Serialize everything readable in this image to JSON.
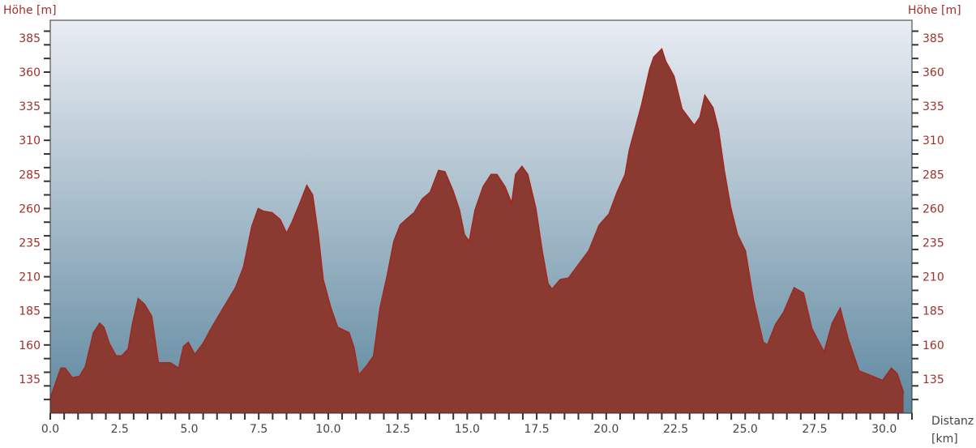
{
  "chart_data": {
    "type": "area",
    "ylabel_left": "Höhe  [m]",
    "ylabel_right": "Höhe  [m]",
    "xlabel": "Distanz",
    "xunit": "[km]",
    "xlim": [
      0,
      31
    ],
    "ylim": [
      110,
      398
    ],
    "xticks": [
      "0.0",
      "2.5",
      "5.0",
      "7.5",
      "10.0",
      "12.5",
      "15.0",
      "17.5",
      "20.0",
      "22.5",
      "25.0",
      "27.5",
      "30.0"
    ],
    "yticks": [
      "135",
      "160",
      "185",
      "210",
      "235",
      "260",
      "285",
      "310",
      "335",
      "360",
      "385"
    ],
    "colors": {
      "fill": "#8b3a32",
      "line": "#a3271c",
      "label": "#a0302a",
      "bg_top": "#e9edf3",
      "bg_bottom": "#5f889f"
    },
    "x": [
      0,
      0.38,
      0.53,
      0.8,
      1.05,
      1.26,
      1.55,
      1.78,
      1.93,
      2.13,
      2.37,
      2.57,
      2.8,
      2.95,
      3.16,
      3.39,
      3.65,
      3.89,
      4.32,
      4.62,
      4.79,
      4.97,
      5.2,
      5.49,
      5.84,
      6.22,
      6.66,
      6.95,
      7.25,
      7.48,
      7.68,
      7.98,
      8.27,
      8.5,
      8.7,
      8.94,
      9.23,
      9.44,
      9.64,
      9.82,
      10.1,
      10.34,
      10.75,
      10.93,
      11.1,
      11.39,
      11.63,
      11.86,
      12.12,
      12.36,
      12.59,
      12.8,
      13.09,
      13.38,
      13.67,
      13.97,
      14.2,
      14.49,
      14.72,
      14.9,
      15.07,
      15.28,
      15.57,
      15.86,
      16.07,
      16.36,
      16.6,
      16.74,
      16.97,
      17.18,
      17.47,
      17.7,
      17.91,
      18.05,
      18.35,
      18.64,
      18.93,
      19.37,
      19.75,
      20.1,
      20.39,
      20.68,
      20.83,
      21.27,
      21.56,
      21.71,
      22.0,
      22.14,
      22.44,
      22.73,
      23.17,
      23.37,
      23.55,
      23.84,
      24.04,
      24.25,
      24.48,
      24.72,
      25.01,
      25.3,
      25.65,
      25.8,
      26.09,
      26.38,
      26.76,
      27.1,
      27.4,
      27.84,
      28.13,
      28.42,
      28.71,
      29.1,
      29.59,
      29.94,
      30.26,
      30.47,
      30.7
    ],
    "y": [
      121,
      143,
      143,
      136,
      137,
      144,
      169,
      176,
      173,
      161,
      152,
      152,
      157,
      175,
      194,
      190,
      181,
      147,
      147,
      143,
      159,
      162,
      153,
      161,
      174,
      187,
      202,
      217,
      247,
      260,
      258,
      257,
      252,
      242,
      250,
      262,
      277,
      270,
      241,
      208,
      187,
      173,
      169,
      158,
      138,
      145,
      152,
      187,
      211,
      236,
      248,
      252,
      257,
      267,
      272,
      288,
      287,
      273,
      259,
      241,
      236,
      259,
      276,
      285,
      285,
      276,
      264,
      285,
      291,
      285,
      260,
      229,
      205,
      201,
      208,
      209,
      217,
      229,
      248,
      256,
      272,
      285,
      303,
      336,
      362,
      371,
      377,
      368,
      357,
      333,
      321,
      327,
      343,
      334,
      318,
      288,
      261,
      241,
      229,
      193,
      162,
      160,
      175,
      184,
      202,
      198,
      172,
      155,
      176,
      187,
      164,
      141,
      137,
      134,
      143,
      139,
      125
    ]
  }
}
